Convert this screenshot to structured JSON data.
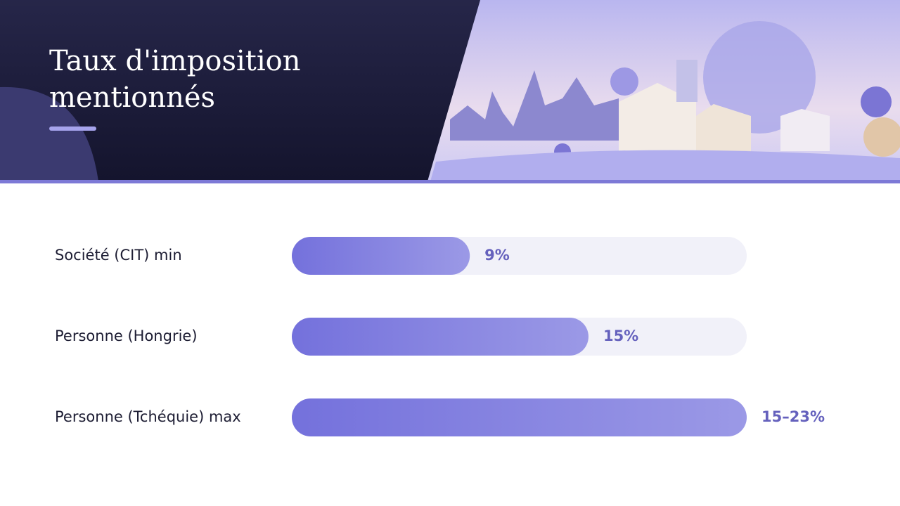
{
  "chart_data": {
    "type": "bar",
    "orientation": "horizontal",
    "title": "Taux d'imposition mentionnés",
    "categories": [
      "Société (CIT) min",
      "Personne (Hongrie)",
      "Personne (Tchéquie) max"
    ],
    "values": [
      9,
      15,
      23
    ],
    "value_labels": [
      "9%",
      "15%",
      "15–23%"
    ],
    "color": "#7b78de",
    "xlim": [
      0,
      23
    ]
  }
}
